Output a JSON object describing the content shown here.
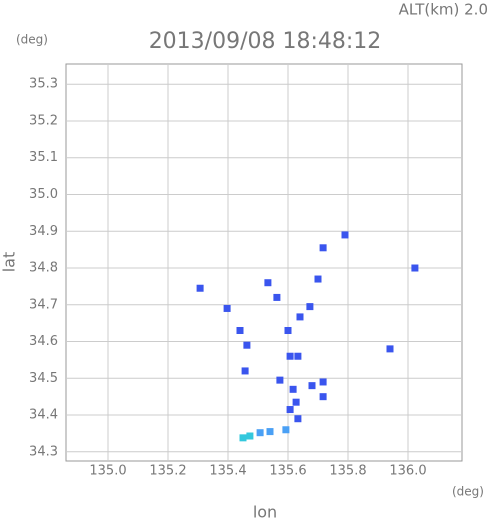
{
  "chart_data": {
    "type": "scatter",
    "title": "2013/09/08 18:48:12",
    "subtitle": "ALT(km) 2.0",
    "x_label": "lon",
    "y_label": "lat",
    "x_unit": "(deg)",
    "y_unit": "(deg)",
    "grid": true,
    "xlim": [
      134.86,
      136.18
    ],
    "ylim": [
      34.275,
      35.355
    ],
    "xticks": [
      {
        "value": 135.0,
        "label": "135.0"
      },
      135.2,
      135.4,
      135.6,
      135.8,
      {
        "value": 136.0,
        "label": "136.0"
      }
    ],
    "yticks": [
      34.3,
      34.4,
      34.5,
      34.6,
      34.7,
      34.8,
      34.9,
      {
        "value": 35.0,
        "label": "35.0"
      },
      35.1,
      35.2,
      35.3
    ],
    "series": [
      {
        "color": "#3a55ee",
        "x": [
          136.023,
          135.94,
          135.79,
          135.717,
          135.7,
          135.533,
          135.397,
          135.307,
          135.563,
          135.673,
          135.64,
          135.44,
          135.463,
          135.6,
          135.607,
          135.633,
          135.457,
          135.573,
          135.68,
          135.717,
          135.717,
          135.617,
          135.627,
          135.607,
          135.633
        ],
        "values": [
          34.8,
          34.58,
          34.89,
          34.855,
          34.77,
          34.76,
          34.69,
          34.745,
          34.72,
          34.695,
          34.667,
          34.63,
          34.59,
          34.63,
          34.56,
          34.56,
          34.52,
          34.495,
          34.48,
          34.49,
          34.45,
          34.47,
          34.435,
          34.415,
          34.39
        ]
      },
      {
        "color": "#4aa0f5",
        "x": [
          135.593,
          135.54,
          135.507
        ],
        "values": [
          34.36,
          34.355,
          34.352
        ]
      },
      {
        "color": "#33c8dd",
        "x": [
          135.473,
          135.45
        ],
        "values": [
          34.343,
          34.338
        ]
      }
    ]
  }
}
